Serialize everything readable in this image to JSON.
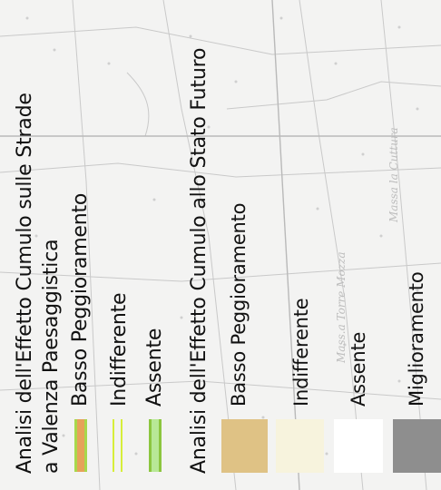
{
  "map": {
    "place_labels": [
      "Mass.a Torre Mozza",
      "Massa la Cuttura"
    ]
  },
  "legend": {
    "section1": {
      "title_line1": "Analisi dell'Effetto Cumulo sulle Strade",
      "title_line2": "a Valenza Paesaggistica",
      "items": [
        {
          "label": "Basso Peggioramento",
          "symbol": "orange-line-green-border",
          "color": "#e6a25a",
          "border": "#a8d84c"
        },
        {
          "label": "Indifferente",
          "symbol": "double-yellow-green-lines",
          "color": "#d7ee3a"
        },
        {
          "label": "Assente",
          "symbol": "light-green-line-dark-border",
          "color": "#b8e896",
          "border": "#8cc63f"
        }
      ]
    },
    "section2": {
      "title": "Analisi dell'Effetto Cumulo allo Stato Futuro",
      "items": [
        {
          "label": "Basso Peggioramento",
          "color": "#dfc285"
        },
        {
          "label": "Indifferente",
          "color": "#f7f3dd"
        },
        {
          "label": "Assente",
          "color": "#ffffff"
        },
        {
          "label": "Miglioramento",
          "color": "#8e8e8e"
        }
      ]
    }
  }
}
